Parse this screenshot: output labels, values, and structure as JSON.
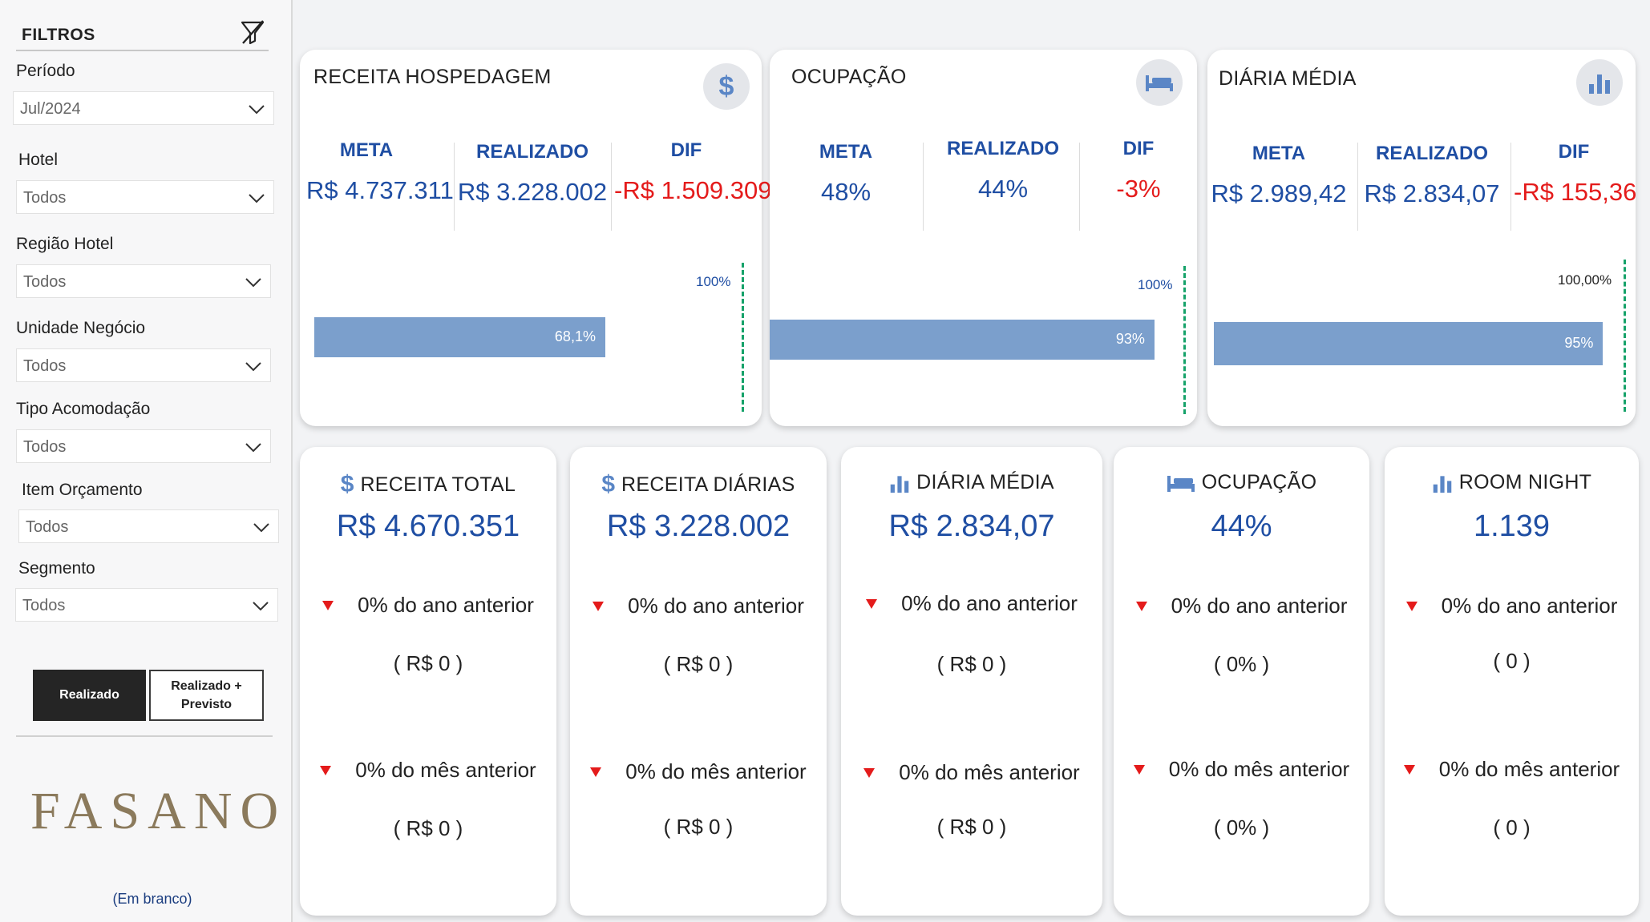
{
  "filters": {
    "title": "FILTROS",
    "fields": [
      {
        "label": "Período",
        "value": "Jul/2024"
      },
      {
        "label": "Hotel",
        "value": "Todos"
      },
      {
        "label": "Região Hotel",
        "value": "Todos"
      },
      {
        "label": "Unidade Negócio",
        "value": "Todos"
      },
      {
        "label": "Tipo Acomodação",
        "value": "Todos"
      },
      {
        "label": "Item Orçamento",
        "value": "Todos"
      },
      {
        "label": "Segmento",
        "value": "Todos"
      }
    ],
    "toggle": {
      "realizado": "Realizado",
      "realizado_previsto": "Realizado + Previsto"
    },
    "logo": "FASANO",
    "blank_label": "(Em branco)"
  },
  "kpi_top": [
    {
      "title": "RECEITA HOSPEDAGEM",
      "icon": "dollar-icon",
      "meta_label": "META",
      "realizado_label": "REALIZADO",
      "dif_label": "DIF",
      "meta": "R$ 4.737.311",
      "realizado": "R$ 3.228.002",
      "dif": "-R$ 1.509.309",
      "progress_pct": 68.1,
      "progress_label": "68,1%",
      "target_label": "100%"
    },
    {
      "title": "OCUPAÇÃO",
      "icon": "bed-icon",
      "meta_label": "META",
      "realizado_label": "REALIZADO",
      "dif_label": "DIF",
      "meta": "48%",
      "realizado": "44%",
      "dif": "-3%",
      "progress_pct": 93,
      "progress_label": "93%",
      "target_label": "100%"
    },
    {
      "title": "DIÁRIA MÉDIA",
      "icon": "bar-chart-icon",
      "meta_label": "META",
      "realizado_label": "REALIZADO",
      "dif_label": "DIF",
      "meta": "R$ 2.989,42",
      "realizado": "R$ 2.834,07",
      "dif": "-R$ 155,36",
      "progress_pct": 95,
      "progress_label": "95%",
      "target_label": "100,00%"
    }
  ],
  "kpi_bottom": [
    {
      "title": "RECEITA TOTAL",
      "icon": "dollar-icon",
      "value": "R$ 4.670.351",
      "ano_text": "0% do ano anterior",
      "ano_value": "( R$ 0 )",
      "mes_text": "0% do mês anterior",
      "mes_value": "( R$ 0 )"
    },
    {
      "title": "RECEITA DIÁRIAS",
      "icon": "dollar-icon",
      "value": "R$ 3.228.002",
      "ano_text": "0% do ano anterior",
      "ano_value": "( R$ 0 )",
      "mes_text": "0% do mês anterior",
      "mes_value": "( R$ 0 )"
    },
    {
      "title": "DIÁRIA MÉDIA",
      "icon": "bar-chart-icon",
      "value": "R$ 2.834,07",
      "ano_text": "0% do ano anterior",
      "ano_value": "( R$ 0 )",
      "mes_text": "0% do mês anterior",
      "mes_value": "( R$ 0 )"
    },
    {
      "title": "OCUPAÇÃO",
      "icon": "bed-icon",
      "value": "44%",
      "ano_text": "0% do ano anterior",
      "ano_value": "( 0% )",
      "mes_text": "0% do mês anterior",
      "mes_value": "( 0% )"
    },
    {
      "title": "ROOM NIGHT",
      "icon": "bar-chart-icon",
      "value": "1.139",
      "ano_text": "0% do ano anterior",
      "ano_value": "( 0 )",
      "mes_text": "0% do mês anterior",
      "mes_value": "( 0 )"
    }
  ],
  "colors": {
    "accent_blue": "#1f4ea3",
    "negative_red": "#e41b1b",
    "bar_blue": "#7b9fcc",
    "target_green": "#16a26a",
    "logo_gold": "#8b7a5c"
  }
}
